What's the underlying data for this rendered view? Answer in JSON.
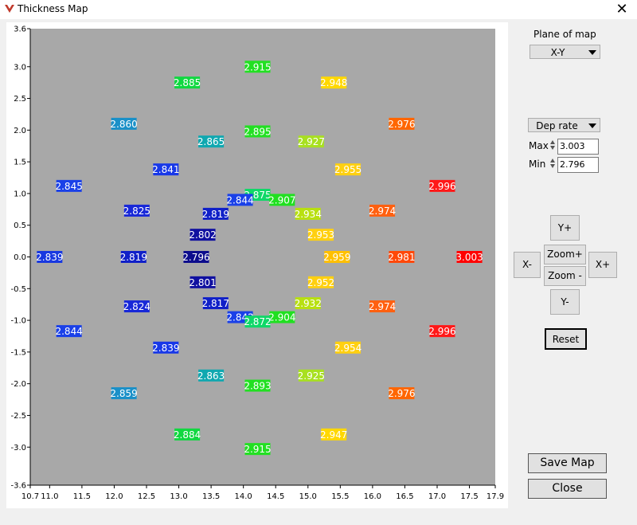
{
  "window": {
    "title": "Thickness Map",
    "close_glyph": "✕",
    "icon": "app-logo-icon"
  },
  "plane": {
    "label": "Plane of map",
    "value": "X-Y"
  },
  "quantity": {
    "value": "Dep rate"
  },
  "max": {
    "label": "Max",
    "value": "3.003"
  },
  "min": {
    "label": "Min",
    "value": "2.796"
  },
  "nav": {
    "y_plus": "Y+",
    "y_minus": "Y-",
    "x_minus": "X-",
    "x_plus": "X+",
    "zoom_in": "Zoom+",
    "zoom_out": "Zoom -",
    "reset": "Reset"
  },
  "actions": {
    "save": "Save Map",
    "close": "Close"
  },
  "chart_data": {
    "type": "scatter",
    "background": "#a8a8a8",
    "xlim": [
      10.7,
      17.9
    ],
    "ylim": [
      -3.6,
      3.6
    ],
    "xticks": [
      "10.7",
      "11.0",
      "11.5",
      "12.0",
      "12.5",
      "13.0",
      "13.5",
      "14.0",
      "14.5",
      "15.0",
      "15.5",
      "16.0",
      "16.5",
      "17.0",
      "17.5",
      "17.9"
    ],
    "yticks": [
      "3.6",
      "3.0",
      "2.5",
      "2.0",
      "1.5",
      "1.0",
      "0.5",
      "0.0",
      "-0.5",
      "-1.0",
      "-1.5",
      "-2.0",
      "-2.5",
      "-3.0",
      "-3.6"
    ],
    "points": [
      {
        "x": 14.22,
        "y": 3.0,
        "label": "2.915",
        "color": "#22e022"
      },
      {
        "x": 13.13,
        "y": 2.75,
        "label": "2.885",
        "color": "#10d840"
      },
      {
        "x": 15.4,
        "y": 2.75,
        "label": "2.948",
        "color": "#ffd800"
      },
      {
        "x": 12.15,
        "y": 2.1,
        "label": "2.860",
        "color": "#1a90c8"
      },
      {
        "x": 16.45,
        "y": 2.1,
        "label": "2.976",
        "color": "#ff6600"
      },
      {
        "x": 14.22,
        "y": 1.98,
        "label": "2.895",
        "color": "#22e022"
      },
      {
        "x": 13.5,
        "y": 1.82,
        "label": "2.865",
        "color": "#10a8b0"
      },
      {
        "x": 15.05,
        "y": 1.82,
        "label": "2.927",
        "color": "#a8e020"
      },
      {
        "x": 12.8,
        "y": 1.38,
        "label": "2.841",
        "color": "#1838e8"
      },
      {
        "x": 15.62,
        "y": 1.38,
        "label": "2.955",
        "color": "#ffd010"
      },
      {
        "x": 11.3,
        "y": 1.12,
        "label": "2.845",
        "color": "#1a40e8"
      },
      {
        "x": 17.08,
        "y": 1.12,
        "label": "2.996",
        "color": "#ff1818"
      },
      {
        "x": 14.22,
        "y": 0.98,
        "label": "2.875",
        "color": "#10d868"
      },
      {
        "x": 13.95,
        "y": 0.9,
        "label": "2.844",
        "color": "#1a40e8"
      },
      {
        "x": 14.6,
        "y": 0.9,
        "label": "2.907",
        "color": "#20e020"
      },
      {
        "x": 12.35,
        "y": 0.73,
        "label": "2.825",
        "color": "#1828d8"
      },
      {
        "x": 16.15,
        "y": 0.73,
        "label": "2.974",
        "color": "#ff6010"
      },
      {
        "x": 13.57,
        "y": 0.68,
        "label": "2.819",
        "color": "#1020c8"
      },
      {
        "x": 15.0,
        "y": 0.68,
        "label": "2.934",
        "color": "#b8e010"
      },
      {
        "x": 13.37,
        "y": 0.35,
        "label": "2.802",
        "color": "#1010a0"
      },
      {
        "x": 15.2,
        "y": 0.35,
        "label": "2.953",
        "color": "#ffd010"
      },
      {
        "x": 11.0,
        "y": 0.0,
        "label": "2.839",
        "color": "#1838e0"
      },
      {
        "x": 12.3,
        "y": 0.0,
        "label": "2.819",
        "color": "#1020c8"
      },
      {
        "x": 13.27,
        "y": 0.0,
        "label": "2.796",
        "color": "#0c0c8c"
      },
      {
        "x": 15.45,
        "y": 0.0,
        "label": "2.959",
        "color": "#ffc000"
      },
      {
        "x": 16.45,
        "y": 0.0,
        "label": "2.981",
        "color": "#ff4808"
      },
      {
        "x": 17.5,
        "y": 0.0,
        "label": "3.003",
        "color": "#ff0000"
      },
      {
        "x": 13.37,
        "y": -0.4,
        "label": "2.801",
        "color": "#1010a0"
      },
      {
        "x": 15.2,
        "y": -0.4,
        "label": "2.952",
        "color": "#ffd010"
      },
      {
        "x": 13.57,
        "y": -0.73,
        "label": "2.817",
        "color": "#1020c8"
      },
      {
        "x": 15.0,
        "y": -0.73,
        "label": "2.932",
        "color": "#b8e010"
      },
      {
        "x": 12.35,
        "y": -0.78,
        "label": "2.824",
        "color": "#1828d8"
      },
      {
        "x": 16.15,
        "y": -0.78,
        "label": "2.974",
        "color": "#ff6010"
      },
      {
        "x": 13.95,
        "y": -0.95,
        "label": "2.842",
        "color": "#1a40e8"
      },
      {
        "x": 14.6,
        "y": -0.95,
        "label": "2.904",
        "color": "#20e020"
      },
      {
        "x": 14.22,
        "y": -1.02,
        "label": "2.872",
        "color": "#10d868"
      },
      {
        "x": 11.3,
        "y": -1.17,
        "label": "2.844",
        "color": "#1a40e8"
      },
      {
        "x": 17.08,
        "y": -1.17,
        "label": "2.996",
        "color": "#ff1818"
      },
      {
        "x": 12.8,
        "y": -1.43,
        "label": "2.839",
        "color": "#1838e8"
      },
      {
        "x": 15.62,
        "y": -1.43,
        "label": "2.954",
        "color": "#ffd010"
      },
      {
        "x": 13.5,
        "y": -1.87,
        "label": "2.863",
        "color": "#10a8b0"
      },
      {
        "x": 15.05,
        "y": -1.87,
        "label": "2.925",
        "color": "#a8e020"
      },
      {
        "x": 14.22,
        "y": -2.03,
        "label": "2.893",
        "color": "#22e022"
      },
      {
        "x": 12.15,
        "y": -2.15,
        "label": "2.859",
        "color": "#1a90c8"
      },
      {
        "x": 16.45,
        "y": -2.15,
        "label": "2.976",
        "color": "#ff6600"
      },
      {
        "x": 13.13,
        "y": -2.8,
        "label": "2.884",
        "color": "#10d840"
      },
      {
        "x": 15.4,
        "y": -2.8,
        "label": "2.947",
        "color": "#ffd800"
      },
      {
        "x": 14.22,
        "y": -3.03,
        "label": "2.915",
        "color": "#22e022"
      }
    ]
  }
}
